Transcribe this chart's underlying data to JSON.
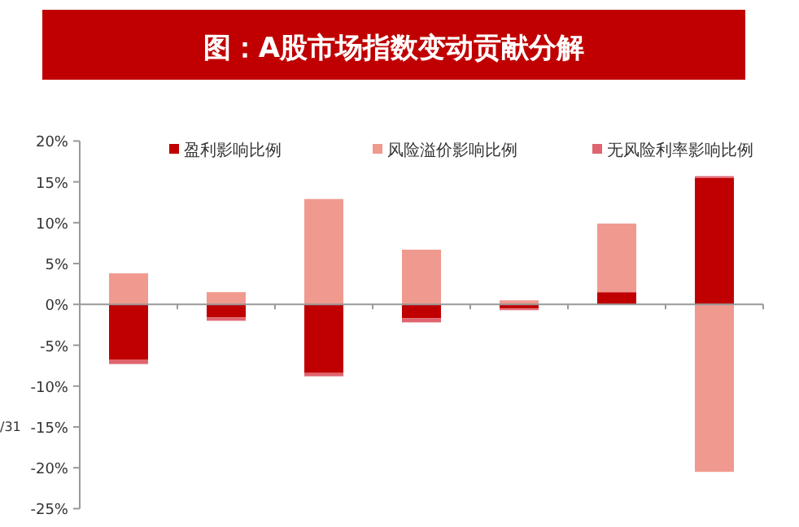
{
  "chart_data": {
    "type": "bar",
    "stacked": true,
    "title": "图：A股市场指数变动贡献分解",
    "categories": [
      null,
      null,
      null,
      null,
      null,
      null,
      null
    ],
    "series": [
      {
        "name": "盈利影响比例",
        "color": "#c00000",
        "values": [
          -6.8,
          -1.6,
          -8.4,
          -1.7,
          -0.5,
          1.5,
          15.5
        ]
      },
      {
        "name": "风险溢价影响比例",
        "color": "#f0998e",
        "values": [
          3.8,
          1.5,
          12.9,
          6.7,
          0.5,
          8.4,
          -20.5
        ]
      },
      {
        "name": "无风险利率影响比例",
        "color": "#e06470",
        "values": [
          -0.5,
          -0.4,
          -0.4,
          -0.5,
          -0.2,
          0,
          0.2
        ]
      }
    ],
    "ylim": [
      -25,
      20
    ],
    "yticks": [
      {
        "value": 20,
        "label": "20%"
      },
      {
        "value": 15,
        "label": "15%"
      },
      {
        "value": 10,
        "label": "10%"
      },
      {
        "value": 5,
        "label": "5%"
      },
      {
        "value": 0,
        "label": "0%"
      },
      {
        "value": -5,
        "label": "-5%"
      },
      {
        "value": -10,
        "label": "-10%"
      },
      {
        "value": -15,
        "label": "-15%"
      },
      {
        "value": -20,
        "label": "-20%"
      },
      {
        "value": -25,
        "label": "-25%"
      }
    ],
    "legend": "top",
    "annotations": [
      "/31"
    ]
  }
}
